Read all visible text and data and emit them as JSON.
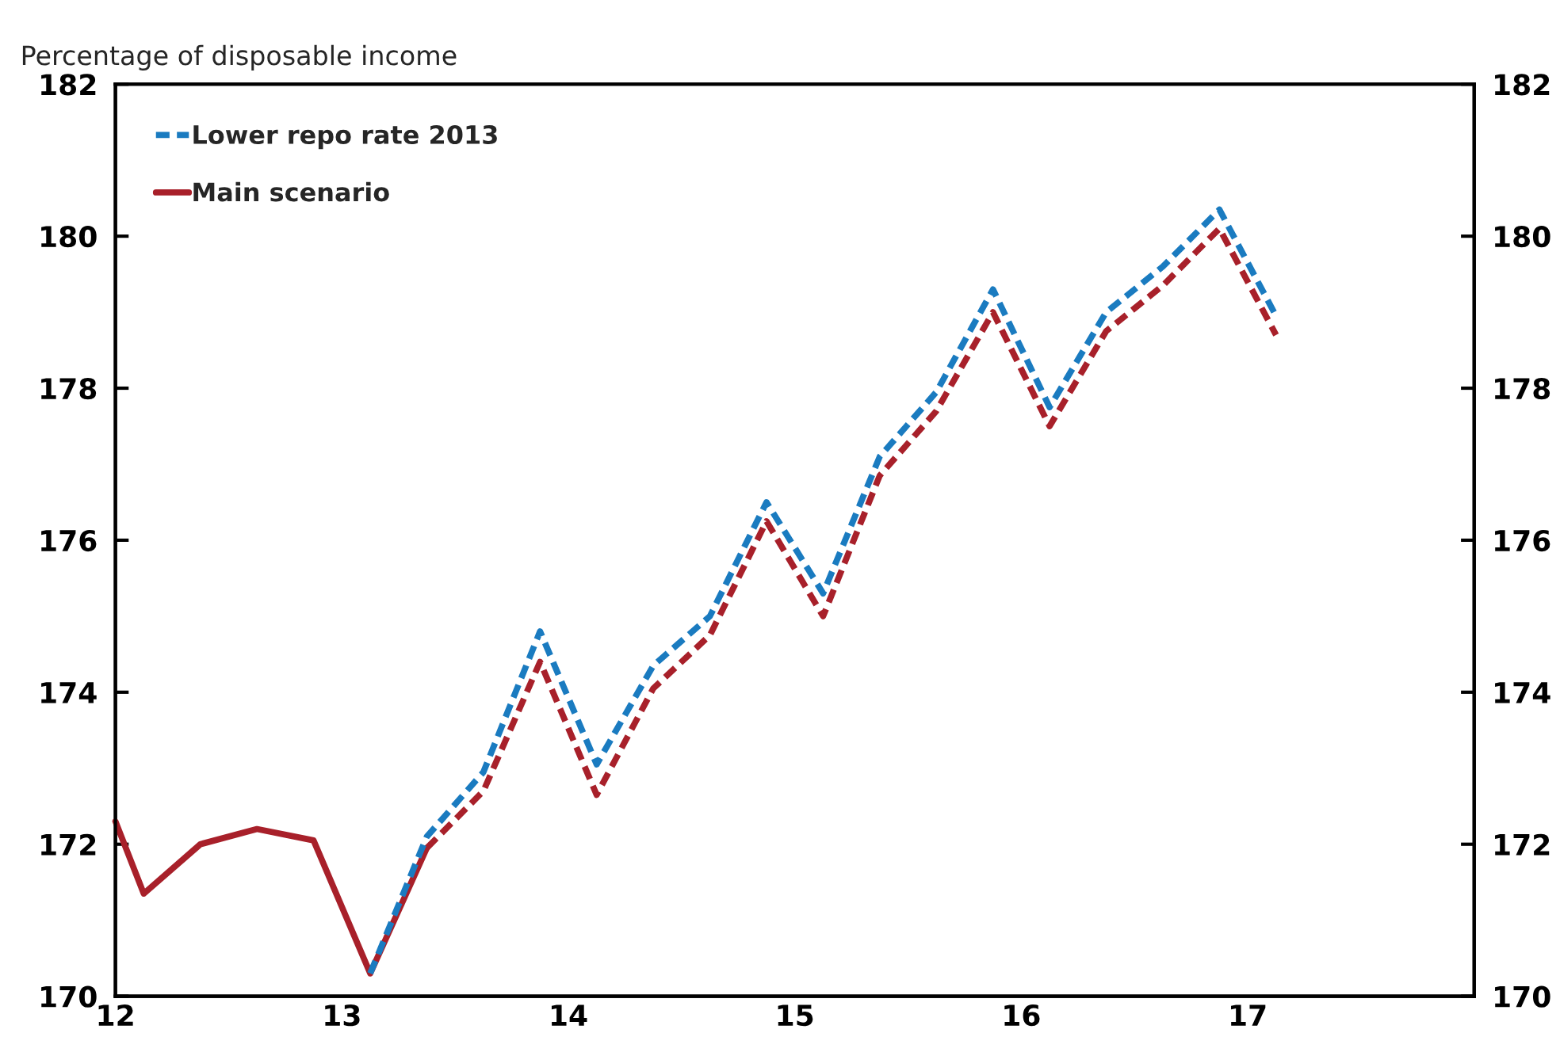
{
  "chart_data": {
    "type": "line",
    "ylabel": "Percentage of disposable income",
    "xlim": [
      12,
      18
    ],
    "xticks": [
      12,
      13,
      14,
      15,
      16,
      17,
      {
        "value": 18,
        "label": null
      }
    ],
    "ylim": [
      170,
      182
    ],
    "yticks": [
      170,
      172,
      174,
      176,
      178,
      180,
      182
    ],
    "y2lim": [
      170,
      182
    ],
    "y2ticks": [
      170,
      172,
      174,
      176,
      178,
      180,
      182
    ],
    "legend": "top left",
    "grid": false,
    "marker": "none",
    "series": [
      {
        "name": "Lower repo rate 2013",
        "color": "#1a7bc0",
        "line_style": "dashed",
        "x": [
          13.125,
          13.375,
          13.625,
          13.875,
          14.125,
          14.375,
          14.625,
          14.875,
          15.125,
          15.375,
          15.625,
          15.875,
          16.125,
          16.375,
          16.625,
          16.875,
          17.125
        ],
        "values": [
          170.3,
          172.1,
          172.95,
          174.8,
          173.05,
          174.35,
          175.0,
          176.5,
          175.3,
          177.1,
          177.95,
          179.3,
          177.75,
          179.0,
          179.6,
          180.35,
          178.95
        ]
      },
      {
        "name": "Main scenario",
        "color": "#a8202a",
        "line_style": "solid",
        "x": [
          12.0,
          12.125,
          12.375,
          12.625,
          12.875,
          13.125,
          13.375
        ],
        "values": [
          172.3,
          171.35,
          172.0,
          172.2,
          172.05,
          170.3,
          171.95
        ]
      },
      {
        "color": "#a8202a",
        "line_style": "dashed",
        "x": [
          13.375,
          13.625,
          13.875,
          14.125,
          14.375,
          14.625,
          14.875,
          15.125,
          15.375,
          15.625,
          15.875,
          16.125,
          16.375,
          16.625,
          16.875,
          17.125
        ],
        "values": [
          171.95,
          172.7,
          174.4,
          172.65,
          174.05,
          174.75,
          176.25,
          175.0,
          176.85,
          177.7,
          179.0,
          177.5,
          178.75,
          179.35,
          180.1,
          178.7
        ]
      }
    ]
  }
}
